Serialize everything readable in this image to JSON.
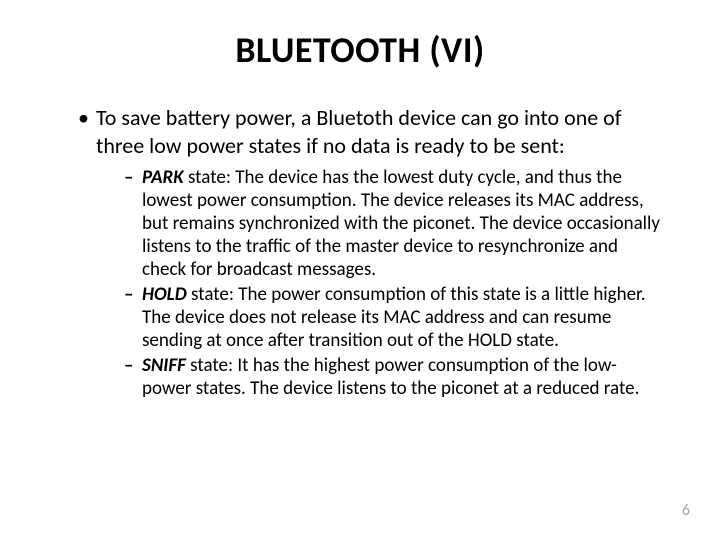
{
  "title": "BLUETOOTH (VI)",
  "bullet_l1": {
    "dot": "•",
    "text": "To save battery power, a Bluetoth device can go into one of three low power states if no data is ready to be sent:"
  },
  "sub": [
    {
      "dash": "–",
      "label": "PARK",
      "text": " state: The device has the lowest duty cycle, and thus the lowest power consumption. The device releases its MAC address, but remains synchronized with the piconet. The device occasionally listens to the traffic of the master device to resynchronize and check for broadcast messages."
    },
    {
      "dash": "–",
      "label": "HOLD",
      "text": " state: The power consumption of this state is a little higher. The device does not release its MAC address and can resume sending at once after transition out of the HOLD state."
    },
    {
      "dash": "–",
      "label": "SNIFF",
      "text": " state: It has the highest power consumption of the low-power states. The device listens to the piconet at a reduced rate."
    }
  ],
  "page_number": "6",
  "colors": {
    "text": "#000000",
    "background": "#ffffff",
    "page_num": "#a6a6a6"
  },
  "fonts": {
    "title_size_pt": 36,
    "body_size_pt": 22,
    "sub_size_pt": 19
  }
}
